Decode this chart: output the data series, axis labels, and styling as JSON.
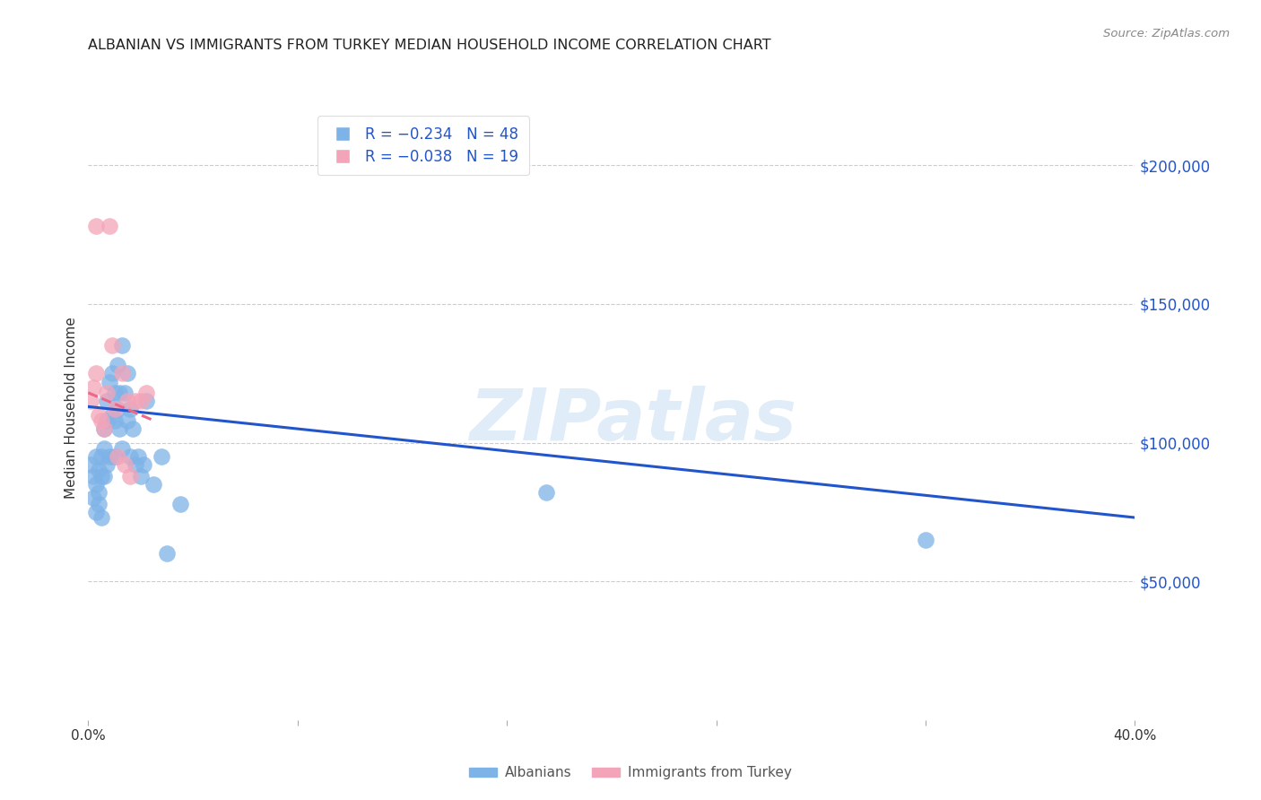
{
  "title": "ALBANIAN VS IMMIGRANTS FROM TURKEY MEDIAN HOUSEHOLD INCOME CORRELATION CHART",
  "source": "Source: ZipAtlas.com",
  "ylabel": "Median Household Income",
  "yticks": [
    0,
    50000,
    100000,
    150000,
    200000
  ],
  "ytick_labels": [
    "",
    "$50,000",
    "$100,000",
    "$150,000",
    "$200,000"
  ],
  "xlim": [
    0.0,
    0.4
  ],
  "ylim": [
    0,
    225000
  ],
  "watermark": "ZIPatlas",
  "legend_alb": "R = −0.234   N = 48",
  "legend_tur": "R = −0.038   N = 19",
  "albanian_color": "#7eb3e8",
  "turkey_color": "#f4a4b8",
  "albanian_line_color": "#2255cc",
  "turkey_line_color": "#ee6688",
  "albanian_x": [
    0.001,
    0.002,
    0.002,
    0.003,
    0.003,
    0.003,
    0.004,
    0.004,
    0.004,
    0.005,
    0.005,
    0.005,
    0.006,
    0.006,
    0.006,
    0.007,
    0.007,
    0.007,
    0.008,
    0.008,
    0.009,
    0.009,
    0.01,
    0.01,
    0.01,
    0.011,
    0.011,
    0.012,
    0.012,
    0.013,
    0.013,
    0.014,
    0.015,
    0.015,
    0.016,
    0.016,
    0.017,
    0.018,
    0.019,
    0.02,
    0.021,
    0.022,
    0.025,
    0.028,
    0.03,
    0.035,
    0.175,
    0.32
  ],
  "albanian_y": [
    92000,
    88000,
    80000,
    75000,
    85000,
    95000,
    90000,
    82000,
    78000,
    95000,
    88000,
    73000,
    105000,
    98000,
    88000,
    115000,
    108000,
    92000,
    122000,
    95000,
    125000,
    110000,
    118000,
    108000,
    95000,
    128000,
    112000,
    118000,
    105000,
    135000,
    98000,
    118000,
    125000,
    108000,
    112000,
    95000,
    105000,
    92000,
    95000,
    88000,
    92000,
    115000,
    85000,
    95000,
    60000,
    78000,
    82000,
    65000
  ],
  "turkey_x": [
    0.001,
    0.002,
    0.003,
    0.003,
    0.004,
    0.005,
    0.006,
    0.007,
    0.008,
    0.009,
    0.01,
    0.011,
    0.013,
    0.014,
    0.015,
    0.016,
    0.018,
    0.02,
    0.022
  ],
  "turkey_y": [
    115000,
    120000,
    125000,
    178000,
    110000,
    108000,
    105000,
    118000,
    178000,
    135000,
    112000,
    95000,
    125000,
    92000,
    115000,
    88000,
    115000,
    115000,
    118000
  ],
  "albanian_line_x": [
    0.0,
    0.4
  ],
  "albanian_line_y": [
    113000,
    73000
  ],
  "turkey_line_x": [
    0.0,
    0.025
  ],
  "turkey_line_y": [
    118000,
    108000
  ],
  "background_color": "#ffffff",
  "grid_color": "#cccccc"
}
